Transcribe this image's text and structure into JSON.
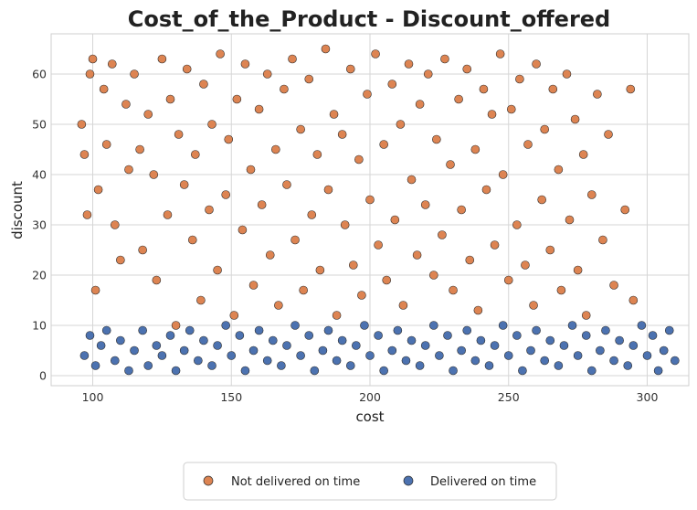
{
  "colors": {
    "not_delivered": "#dd8452",
    "delivered": "#4c72b0",
    "edge": "#2a2a2a",
    "grid": "#d6d6d6",
    "frame": "#cfcfcf"
  },
  "chart_data": {
    "type": "scatter",
    "title": "Cost_of_the_Product - Discount_offered",
    "xlabel": "cost",
    "ylabel": "discount",
    "xlim": [
      85,
      315
    ],
    "ylim": [
      -2,
      68
    ],
    "xticks": [
      100,
      150,
      200,
      250,
      300
    ],
    "yticks": [
      0,
      10,
      20,
      30,
      40,
      50,
      60
    ],
    "grid": true,
    "legend_position": "bottom-center",
    "series": [
      {
        "name": "Not delivered on time",
        "color": "#dd8452",
        "points": [
          [
            96,
            50
          ],
          [
            97,
            44
          ],
          [
            98,
            32
          ],
          [
            99,
            60
          ],
          [
            100,
            63
          ],
          [
            101,
            17
          ],
          [
            102,
            37
          ],
          [
            104,
            57
          ],
          [
            105,
            46
          ],
          [
            107,
            62
          ],
          [
            108,
            30
          ],
          [
            110,
            23
          ],
          [
            112,
            54
          ],
          [
            113,
            41
          ],
          [
            115,
            60
          ],
          [
            117,
            45
          ],
          [
            118,
            25
          ],
          [
            120,
            52
          ],
          [
            122,
            40
          ],
          [
            123,
            19
          ],
          [
            125,
            63
          ],
          [
            127,
            32
          ],
          [
            128,
            55
          ],
          [
            130,
            10
          ],
          [
            131,
            48
          ],
          [
            133,
            38
          ],
          [
            134,
            61
          ],
          [
            136,
            27
          ],
          [
            137,
            44
          ],
          [
            139,
            15
          ],
          [
            140,
            58
          ],
          [
            142,
            33
          ],
          [
            143,
            50
          ],
          [
            145,
            21
          ],
          [
            146,
            64
          ],
          [
            148,
            36
          ],
          [
            149,
            47
          ],
          [
            151,
            12
          ],
          [
            152,
            55
          ],
          [
            154,
            29
          ],
          [
            155,
            62
          ],
          [
            157,
            41
          ],
          [
            158,
            18
          ],
          [
            160,
            53
          ],
          [
            161,
            34
          ],
          [
            163,
            60
          ],
          [
            164,
            24
          ],
          [
            166,
            45
          ],
          [
            167,
            14
          ],
          [
            169,
            57
          ],
          [
            170,
            38
          ],
          [
            172,
            63
          ],
          [
            173,
            27
          ],
          [
            175,
            49
          ],
          [
            176,
            17
          ],
          [
            178,
            59
          ],
          [
            179,
            32
          ],
          [
            181,
            44
          ],
          [
            182,
            21
          ],
          [
            184,
            65
          ],
          [
            185,
            37
          ],
          [
            187,
            52
          ],
          [
            188,
            12
          ],
          [
            190,
            48
          ],
          [
            191,
            30
          ],
          [
            193,
            61
          ],
          [
            194,
            22
          ],
          [
            196,
            43
          ],
          [
            197,
            16
          ],
          [
            199,
            56
          ],
          [
            200,
            35
          ],
          [
            202,
            64
          ],
          [
            203,
            26
          ],
          [
            205,
            46
          ],
          [
            206,
            19
          ],
          [
            208,
            58
          ],
          [
            209,
            31
          ],
          [
            211,
            50
          ],
          [
            212,
            14
          ],
          [
            214,
            62
          ],
          [
            215,
            39
          ],
          [
            217,
            24
          ],
          [
            218,
            54
          ],
          [
            220,
            34
          ],
          [
            221,
            60
          ],
          [
            223,
            20
          ],
          [
            224,
            47
          ],
          [
            226,
            28
          ],
          [
            227,
            63
          ],
          [
            229,
            42
          ],
          [
            230,
            17
          ],
          [
            232,
            55
          ],
          [
            233,
            33
          ],
          [
            235,
            61
          ],
          [
            236,
            23
          ],
          [
            238,
            45
          ],
          [
            239,
            13
          ],
          [
            241,
            57
          ],
          [
            242,
            37
          ],
          [
            244,
            52
          ],
          [
            245,
            26
          ],
          [
            247,
            64
          ],
          [
            248,
            40
          ],
          [
            250,
            19
          ],
          [
            251,
            53
          ],
          [
            253,
            30
          ],
          [
            254,
            59
          ],
          [
            256,
            22
          ],
          [
            257,
            46
          ],
          [
            259,
            14
          ],
          [
            260,
            62
          ],
          [
            262,
            35
          ],
          [
            263,
            49
          ],
          [
            265,
            25
          ],
          [
            266,
            57
          ],
          [
            268,
            41
          ],
          [
            269,
            17
          ],
          [
            271,
            60
          ],
          [
            272,
            31
          ],
          [
            274,
            51
          ],
          [
            275,
            21
          ],
          [
            277,
            44
          ],
          [
            278,
            12
          ],
          [
            280,
            36
          ],
          [
            282,
            56
          ],
          [
            284,
            27
          ],
          [
            286,
            48
          ],
          [
            288,
            18
          ],
          [
            292,
            33
          ],
          [
            294,
            57
          ],
          [
            295,
            15
          ]
        ]
      },
      {
        "name": "Delivered on time",
        "color": "#4c72b0",
        "points": [
          [
            97,
            4
          ],
          [
            99,
            8
          ],
          [
            101,
            2
          ],
          [
            103,
            6
          ],
          [
            105,
            9
          ],
          [
            108,
            3
          ],
          [
            110,
            7
          ],
          [
            113,
            1
          ],
          [
            115,
            5
          ],
          [
            118,
            9
          ],
          [
            120,
            2
          ],
          [
            123,
            6
          ],
          [
            125,
            4
          ],
          [
            128,
            8
          ],
          [
            130,
            1
          ],
          [
            133,
            5
          ],
          [
            135,
            9
          ],
          [
            138,
            3
          ],
          [
            140,
            7
          ],
          [
            143,
            2
          ],
          [
            145,
            6
          ],
          [
            148,
            10
          ],
          [
            150,
            4
          ],
          [
            153,
            8
          ],
          [
            155,
            1
          ],
          [
            158,
            5
          ],
          [
            160,
            9
          ],
          [
            163,
            3
          ],
          [
            165,
            7
          ],
          [
            168,
            2
          ],
          [
            170,
            6
          ],
          [
            173,
            10
          ],
          [
            175,
            4
          ],
          [
            178,
            8
          ],
          [
            180,
            1
          ],
          [
            183,
            5
          ],
          [
            185,
            9
          ],
          [
            188,
            3
          ],
          [
            190,
            7
          ],
          [
            193,
            2
          ],
          [
            195,
            6
          ],
          [
            198,
            10
          ],
          [
            200,
            4
          ],
          [
            203,
            8
          ],
          [
            205,
            1
          ],
          [
            208,
            5
          ],
          [
            210,
            9
          ],
          [
            213,
            3
          ],
          [
            215,
            7
          ],
          [
            218,
            2
          ],
          [
            220,
            6
          ],
          [
            223,
            10
          ],
          [
            225,
            4
          ],
          [
            228,
            8
          ],
          [
            230,
            1
          ],
          [
            233,
            5
          ],
          [
            235,
            9
          ],
          [
            238,
            3
          ],
          [
            240,
            7
          ],
          [
            243,
            2
          ],
          [
            245,
            6
          ],
          [
            248,
            10
          ],
          [
            250,
            4
          ],
          [
            253,
            8
          ],
          [
            255,
            1
          ],
          [
            258,
            5
          ],
          [
            260,
            9
          ],
          [
            263,
            3
          ],
          [
            265,
            7
          ],
          [
            268,
            2
          ],
          [
            270,
            6
          ],
          [
            273,
            10
          ],
          [
            275,
            4
          ],
          [
            278,
            8
          ],
          [
            280,
            1
          ],
          [
            283,
            5
          ],
          [
            285,
            9
          ],
          [
            288,
            3
          ],
          [
            290,
            7
          ],
          [
            293,
            2
          ],
          [
            295,
            6
          ],
          [
            298,
            10
          ],
          [
            300,
            4
          ],
          [
            302,
            8
          ],
          [
            304,
            1
          ],
          [
            306,
            5
          ],
          [
            308,
            9
          ],
          [
            310,
            3
          ]
        ]
      }
    ]
  }
}
